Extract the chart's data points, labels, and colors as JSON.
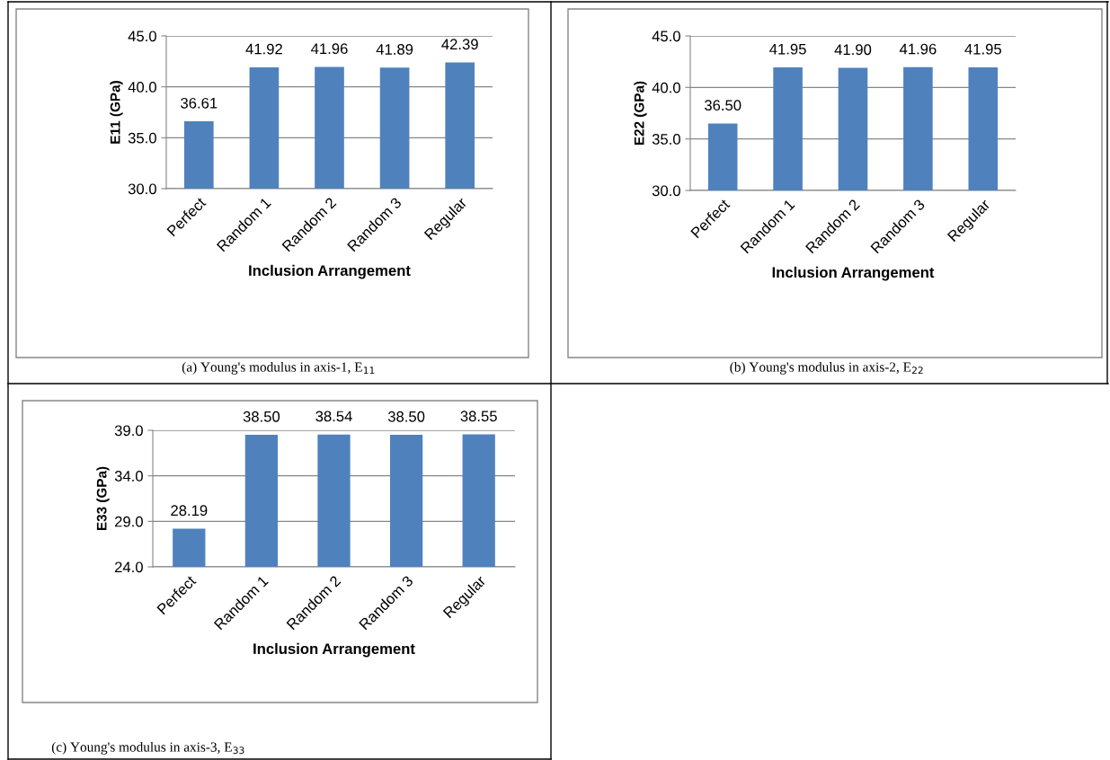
{
  "chart_data": [
    {
      "type": "bar",
      "xlabel": "Inclusion Arrangement",
      "ylabel": "E11 (GPa)",
      "categories": [
        "Perfect",
        "Random 1",
        "Random 2",
        "Random 3",
        "Regular"
      ],
      "values": [
        36.61,
        41.92,
        41.96,
        41.89,
        42.39
      ],
      "color": "#4f81bd",
      "data_labels": true,
      "value_labels": [
        "36.61",
        "41.92",
        "41.96",
        "41.89",
        "42.39"
      ],
      "ylim": [
        30,
        45
      ],
      "yticks": [
        {
          "value": 30,
          "label": "30.0"
        },
        {
          "value": 35,
          "label": "35.0"
        },
        {
          "value": 40,
          "label": "40.0"
        },
        {
          "value": 45,
          "label": "45.0"
        }
      ],
      "grid": "y",
      "annotations": [
        "(a) Young's modulus in axis-1, E$_{11}$"
      ]
    },
    {
      "type": "bar",
      "xlabel": "Inclusion Arrangement",
      "ylabel": "E22 (GPa)",
      "categories": [
        "Perfect",
        "Random 1",
        "Random 2",
        "Random 3",
        "Regular"
      ],
      "values": [
        36.5,
        41.95,
        41.9,
        41.96,
        41.95
      ],
      "color": "#4f81bd",
      "data_labels": true,
      "value_labels": [
        "36.50",
        "41.95",
        "41.90",
        "41.96",
        "41.95"
      ],
      "ylim": [
        30,
        45
      ],
      "yticks": [
        {
          "value": 30,
          "label": "30.0"
        },
        {
          "value": 35,
          "label": "35.0"
        },
        {
          "value": 40,
          "label": "40.0"
        },
        {
          "value": 45,
          "label": "45.0"
        }
      ],
      "grid": "y",
      "annotations": [
        "(b) Young's modulus in axis-2, E$_{22}$"
      ]
    },
    {
      "type": "bar",
      "xlabel": "Inclusion Arrangement",
      "ylabel": "E33 (GPa)",
      "categories": [
        "Perfect",
        "Random 1",
        "Random 2",
        "Random 3",
        "Regular"
      ],
      "values": [
        28.19,
        38.5,
        38.54,
        38.5,
        38.55
      ],
      "color": "#4f81bd",
      "data_labels": true,
      "value_labels": [
        "28.19",
        "38.50",
        "38.54",
        "38.50",
        "38.55"
      ],
      "ylim": [
        24,
        39
      ],
      "yticks": [
        {
          "value": 24,
          "label": "24.0"
        },
        {
          "value": 29,
          "label": "29.0"
        },
        {
          "value": 34,
          "label": "34.0"
        },
        {
          "value": 39,
          "label": "39.0"
        }
      ],
      "grid": "y",
      "annotations": [
        "(c) Young's modulus in axis-3, E$_{33}$"
      ]
    }
  ]
}
